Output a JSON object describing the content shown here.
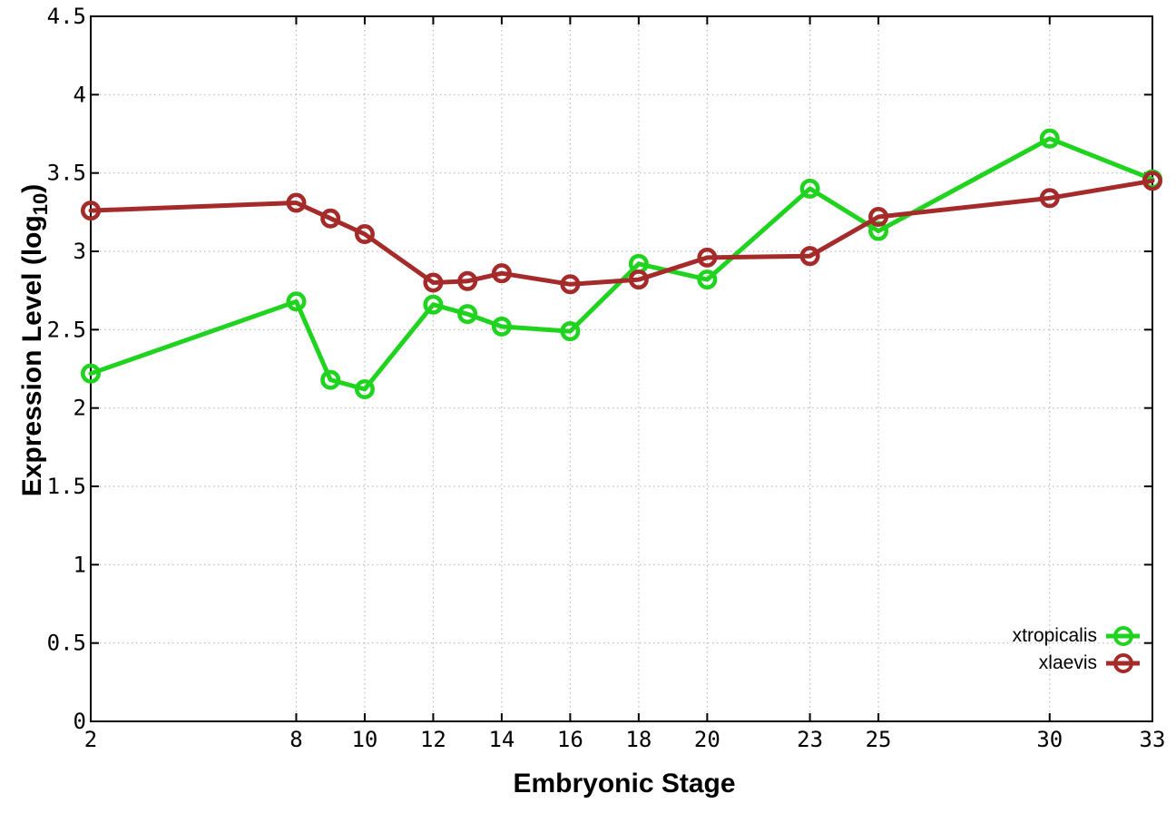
{
  "chart_data": {
    "type": "line",
    "title": "",
    "xlabel": "Embryonic Stage",
    "ylabel": "Expression Level (log10)",
    "ylabel_parts": {
      "pre": "Expression Level (log",
      "sub": "10",
      "post": ")"
    },
    "xlim": [
      2,
      33
    ],
    "ylim": [
      0,
      4.5
    ],
    "x_ticks": [
      2,
      8,
      10,
      12,
      14,
      16,
      18,
      20,
      23,
      25,
      30,
      33
    ],
    "x_tick_labels": [
      "2",
      "8",
      "10",
      "12",
      "14",
      "16",
      "18",
      "20",
      "23",
      "25",
      "30",
      "33"
    ],
    "y_ticks": [
      0,
      0.5,
      1,
      1.5,
      2,
      2.5,
      3,
      3.5,
      4,
      4.5
    ],
    "y_tick_labels": [
      "0",
      "0.5",
      "1",
      "1.5",
      "2",
      "2.5",
      "3",
      "3.5",
      "4",
      "4.5"
    ],
    "grid": true,
    "legend_position": "inside-bottom-right",
    "marker": "open-circle",
    "x": [
      2,
      8,
      9,
      10,
      12,
      13,
      14,
      16,
      18,
      20,
      23,
      25,
      30,
      33
    ],
    "series": [
      {
        "name": "xtropicalis",
        "color": "#1fd31f",
        "values": [
          2.22,
          2.68,
          2.18,
          2.12,
          2.66,
          2.6,
          2.52,
          2.49,
          2.92,
          2.82,
          3.4,
          3.13,
          3.72,
          3.46
        ]
      },
      {
        "name": "xlaevis",
        "color": "#a52a2a",
        "values": [
          3.26,
          3.31,
          3.21,
          3.11,
          2.8,
          2.81,
          2.86,
          2.79,
          2.82,
          2.96,
          2.97,
          3.22,
          3.34,
          3.45
        ]
      }
    ]
  },
  "colors": {
    "background": "#ffffff",
    "border": "#000000",
    "grid": "#bcbcbc",
    "text": "#000000"
  },
  "legend": {
    "items": [
      {
        "label": "xtropicalis"
      },
      {
        "label": "xlaevis"
      }
    ]
  }
}
